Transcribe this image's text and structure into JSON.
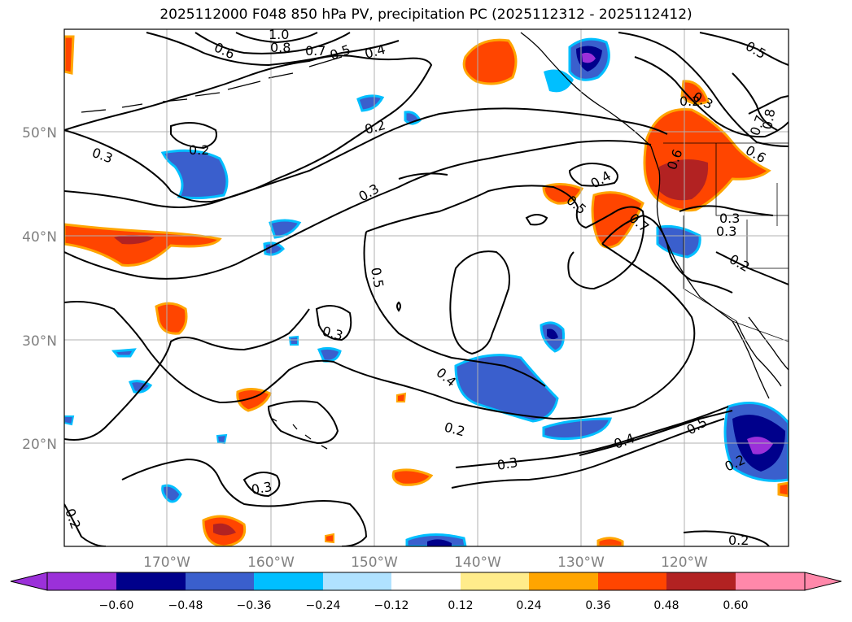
{
  "title": "2025112000 F048 850 hPa PV, precipitation PC (2025112312 - 2025112412)",
  "map": {
    "lat_labels": [
      "50°N",
      "40°N",
      "30°N",
      "20°N"
    ],
    "lon_labels": [
      "170°W",
      "160°W",
      "150°W",
      "140°W",
      "130°W",
      "120°W"
    ],
    "contour_labels": [
      "1.0",
      "0.8",
      "0.6",
      "0.7",
      "0.5",
      "0.4",
      "0.2",
      "0.2",
      "0.3",
      "0.3",
      "0.5",
      "0.3",
      "0.4",
      "0.5",
      "0.7",
      "0.3",
      "0.6",
      "0.5",
      "0.3",
      "0.3",
      "0.2",
      "0.2",
      "0.4",
      "0.2",
      "0.3",
      "0.4",
      "0.5",
      "0.2",
      "0.3",
      "0.2",
      "0.2",
      "0.8",
      "0.7",
      "0.6"
    ]
  },
  "colorbar": {
    "ticks": [
      "−0.60",
      "−0.48",
      "−0.36",
      "−0.24",
      "−0.12",
      "0.12",
      "0.24",
      "0.36",
      "0.48",
      "0.60"
    ],
    "colors": [
      "#9b30d9",
      "#00008b",
      "#3a5fcd",
      "#00bfff",
      "#b0e2ff",
      "#ffffff",
      "#ffec8b",
      "#ffa500",
      "#ff4500",
      "#b22222",
      "#ff88aa"
    ]
  },
  "colors": {
    "neg_strong": "#9b30d9",
    "neg_dark": "#00008b",
    "neg_mid": "#3a5fcd",
    "neg_light": "#00bfff",
    "pos_light": "#ffec8b",
    "pos_mid": "#ffa500",
    "pos_orange": "#ff4500",
    "pos_dark": "#b22222",
    "grid": "#b0b0b0"
  }
}
